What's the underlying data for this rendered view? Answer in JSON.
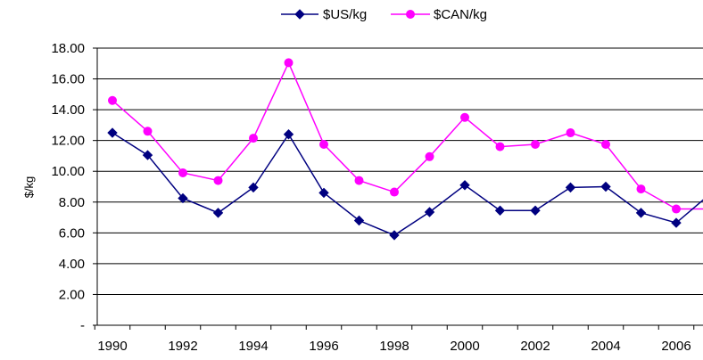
{
  "chart_data": {
    "type": "line",
    "title": "",
    "xlabel": "",
    "ylabel": "$/kg",
    "ylim": [
      0,
      18
    ],
    "y_ticks": [
      "-",
      "2.00",
      "4.00",
      "6.00",
      "8.00",
      "10.00",
      "12.00",
      "14.00",
      "16.00",
      "18.00"
    ],
    "x": [
      1990,
      1991,
      1992,
      1993,
      1994,
      1995,
      1996,
      1997,
      1998,
      1999,
      2000,
      2001,
      2002,
      2003,
      2004,
      2005,
      2006,
      2007
    ],
    "x_tick_labels": [
      "1990",
      "1992",
      "1994",
      "1996",
      "1998",
      "2000",
      "2002",
      "2004",
      "2006"
    ],
    "grid": "horizontal",
    "legend_position": "top-center",
    "series": [
      {
        "name": "$US/kg",
        "color": "#000080",
        "marker": "diamond",
        "values": [
          12.5,
          11.05,
          8.25,
          7.3,
          8.95,
          12.4,
          8.6,
          6.8,
          5.85,
          7.35,
          9.1,
          7.45,
          7.45,
          8.95,
          9.0,
          7.3,
          6.65,
          8.6
        ]
      },
      {
        "name": "$CAN/kg",
        "color": "#FF00FF",
        "marker": "circle",
        "values": [
          14.6,
          12.6,
          9.9,
          9.4,
          12.15,
          17.05,
          11.75,
          9.4,
          8.65,
          10.95,
          13.5,
          11.6,
          11.75,
          12.5,
          11.75,
          8.85,
          7.55,
          7.55
        ]
      }
    ]
  }
}
